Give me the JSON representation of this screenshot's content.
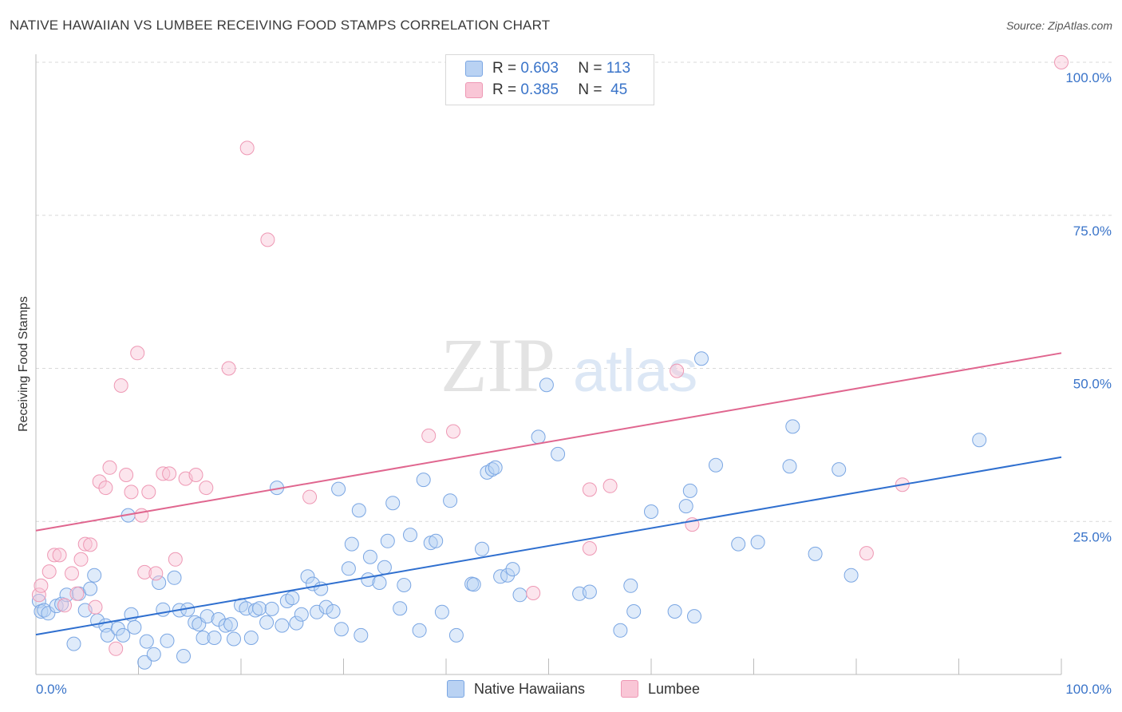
{
  "title": "NATIVE HAWAIIAN VS LUMBEE RECEIVING FOOD STAMPS CORRELATION CHART",
  "source": "Source: ZipAtlas.com",
  "watermark": {
    "zip": "ZIP",
    "atlas": "atlas"
  },
  "legend": {
    "r_label": "R =",
    "n_label": "N =",
    "rows": [
      {
        "r": "0.603",
        "n": "113",
        "fill": "#b9d2f3",
        "stroke": "#7aa6e3"
      },
      {
        "r": "0.385",
        "n": "45",
        "fill": "#f9c6d6",
        "stroke": "#ee98b4"
      }
    ]
  },
  "bottom_legend": {
    "native": "Native Hawaiians",
    "lumbee": "Lumbee"
  },
  "colors": {
    "blue": "#4a86d8",
    "blue_line": "#2f6fcf",
    "pink": "#ee8fb0",
    "pink_line": "#e0668f",
    "tick": "#3a74c9",
    "grid": "#d9d9d9"
  },
  "chart_data": {
    "type": "scatter",
    "title": "NATIVE HAWAIIAN VS LUMBEE RECEIVING FOOD STAMPS CORRELATION CHART",
    "xlabel": "",
    "ylabel": "Receiving Food Stamps",
    "xlim": [
      0,
      100
    ],
    "ylim": [
      0,
      100
    ],
    "x_ticks": [
      "0.0%",
      "100.0%"
    ],
    "y_ticks": [
      {
        "v": 25,
        "label": "25.0%"
      },
      {
        "v": 50,
        "label": "50.0%"
      },
      {
        "v": 75,
        "label": "75.0%"
      },
      {
        "v": 100,
        "label": "100.0%"
      }
    ],
    "grid": "horizontal dashed",
    "series": [
      {
        "name": "Native Hawaiians",
        "r": 0.603,
        "n": 113,
        "trend": [
          [
            0,
            6.5
          ],
          [
            100,
            35.5
          ]
        ],
        "points": [
          [
            0.3,
            12
          ],
          [
            0.5,
            10.3
          ],
          [
            0.8,
            10.5
          ],
          [
            1.2,
            10
          ],
          [
            2,
            11.2
          ],
          [
            2.5,
            11.5
          ],
          [
            3,
            13
          ],
          [
            3.7,
            5
          ],
          [
            4.2,
            13.2
          ],
          [
            4.8,
            10.5
          ],
          [
            5.3,
            14
          ],
          [
            5.7,
            16.2
          ],
          [
            6,
            8.8
          ],
          [
            6.8,
            8
          ],
          [
            7,
            6.4
          ],
          [
            8,
            7.5
          ],
          [
            8.5,
            6.4
          ],
          [
            9,
            26
          ],
          [
            9.3,
            9.8
          ],
          [
            9.6,
            7.7
          ],
          [
            10.6,
            2
          ],
          [
            10.8,
            5.4
          ],
          [
            11.5,
            3.3
          ],
          [
            12,
            15
          ],
          [
            12.4,
            10.6
          ],
          [
            12.8,
            5.5
          ],
          [
            13.5,
            15.8
          ],
          [
            14,
            10.5
          ],
          [
            14.4,
            3
          ],
          [
            14.8,
            10.6
          ],
          [
            15.5,
            8.5
          ],
          [
            15.9,
            8.2
          ],
          [
            16.3,
            6
          ],
          [
            16.7,
            9.5
          ],
          [
            17.4,
            6
          ],
          [
            17.8,
            9
          ],
          [
            18.5,
            8
          ],
          [
            19,
            8.2
          ],
          [
            19.3,
            5.8
          ],
          [
            20,
            11.3
          ],
          [
            20.5,
            10.8
          ],
          [
            21,
            6
          ],
          [
            21.4,
            10.5
          ],
          [
            21.8,
            10.8
          ],
          [
            22.5,
            8.5
          ],
          [
            23,
            10.7
          ],
          [
            23.5,
            30.5
          ],
          [
            24,
            8
          ],
          [
            24.5,
            12
          ],
          [
            25,
            12.5
          ],
          [
            25.4,
            8.4
          ],
          [
            25.9,
            9.8
          ],
          [
            26.5,
            16
          ],
          [
            27,
            14.8
          ],
          [
            27.4,
            10.2
          ],
          [
            27.8,
            14
          ],
          [
            28.3,
            11
          ],
          [
            29,
            10.3
          ],
          [
            29.5,
            30.3
          ],
          [
            29.8,
            7.4
          ],
          [
            30.5,
            17.3
          ],
          [
            30.8,
            21.3
          ],
          [
            31.5,
            26.8
          ],
          [
            31.7,
            6.4
          ],
          [
            32.4,
            15.5
          ],
          [
            32.6,
            19.2
          ],
          [
            33.5,
            15
          ],
          [
            34,
            17.5
          ],
          [
            34.3,
            21.8
          ],
          [
            34.8,
            28
          ],
          [
            35.5,
            10.8
          ],
          [
            35.9,
            14.6
          ],
          [
            36.5,
            22.8
          ],
          [
            37.4,
            7.2
          ],
          [
            37.8,
            31.8
          ],
          [
            38.5,
            21.5
          ],
          [
            39,
            21.8
          ],
          [
            39.6,
            10.2
          ],
          [
            40.4,
            28.4
          ],
          [
            41,
            6.4
          ],
          [
            42.5,
            14.8
          ],
          [
            42.7,
            14.7
          ],
          [
            43.5,
            20.5
          ],
          [
            44,
            33
          ],
          [
            44.5,
            33.5
          ],
          [
            44.8,
            33.8
          ],
          [
            45.3,
            16
          ],
          [
            46,
            16.2
          ],
          [
            46.5,
            17.2
          ],
          [
            47.2,
            13
          ],
          [
            49,
            38.8
          ],
          [
            49.8,
            47.3
          ],
          [
            50.9,
            36
          ],
          [
            53,
            13.2
          ],
          [
            54,
            13.5
          ],
          [
            57,
            7.2
          ],
          [
            58,
            14.5
          ],
          [
            58.3,
            10.3
          ],
          [
            60,
            26.6
          ],
          [
            62.3,
            10.3
          ],
          [
            63.4,
            27.5
          ],
          [
            63.8,
            30
          ],
          [
            64.2,
            9.5
          ],
          [
            64.9,
            51.6
          ],
          [
            66.3,
            34.2
          ],
          [
            68.5,
            21.3
          ],
          [
            70.4,
            21.6
          ],
          [
            73.5,
            34
          ],
          [
            73.8,
            40.5
          ],
          [
            76,
            19.7
          ],
          [
            78.3,
            33.5
          ],
          [
            79.5,
            16.2
          ],
          [
            92,
            38.3
          ]
        ]
      },
      {
        "name": "Lumbee",
        "r": 0.385,
        "n": 45,
        "trend": [
          [
            0,
            23.5
          ],
          [
            100,
            52.5
          ]
        ],
        "points": [
          [
            0.3,
            13
          ],
          [
            0.5,
            14.5
          ],
          [
            1.3,
            16.8
          ],
          [
            1.8,
            19.5
          ],
          [
            2.3,
            19.5
          ],
          [
            2.8,
            11.3
          ],
          [
            3.5,
            16.5
          ],
          [
            4,
            13.2
          ],
          [
            4.4,
            18.8
          ],
          [
            4.8,
            21.3
          ],
          [
            5.3,
            21.2
          ],
          [
            5.8,
            11
          ],
          [
            6.2,
            31.5
          ],
          [
            6.8,
            30.5
          ],
          [
            7.2,
            33.8
          ],
          [
            7.8,
            4.2
          ],
          [
            8.3,
            47.2
          ],
          [
            8.8,
            32.6
          ],
          [
            9.3,
            29.8
          ],
          [
            9.9,
            52.5
          ],
          [
            10.3,
            26
          ],
          [
            10.6,
            16.7
          ],
          [
            11,
            29.8
          ],
          [
            11.7,
            16.5
          ],
          [
            12.4,
            32.8
          ],
          [
            13,
            32.8
          ],
          [
            13.6,
            18.8
          ],
          [
            14.6,
            32
          ],
          [
            15.6,
            32.6
          ],
          [
            16.6,
            30.5
          ],
          [
            18.8,
            50
          ],
          [
            20.6,
            86
          ],
          [
            22.6,
            71
          ],
          [
            26.7,
            29
          ],
          [
            38.3,
            39
          ],
          [
            40.7,
            39.7
          ],
          [
            48.5,
            13.3
          ],
          [
            54,
            20.6
          ],
          [
            54,
            30.2
          ],
          [
            56,
            30.8
          ],
          [
            62.5,
            49.6
          ],
          [
            64,
            24.5
          ],
          [
            81,
            19.8
          ],
          [
            84.5,
            31
          ],
          [
            100,
            100
          ]
        ]
      }
    ]
  }
}
